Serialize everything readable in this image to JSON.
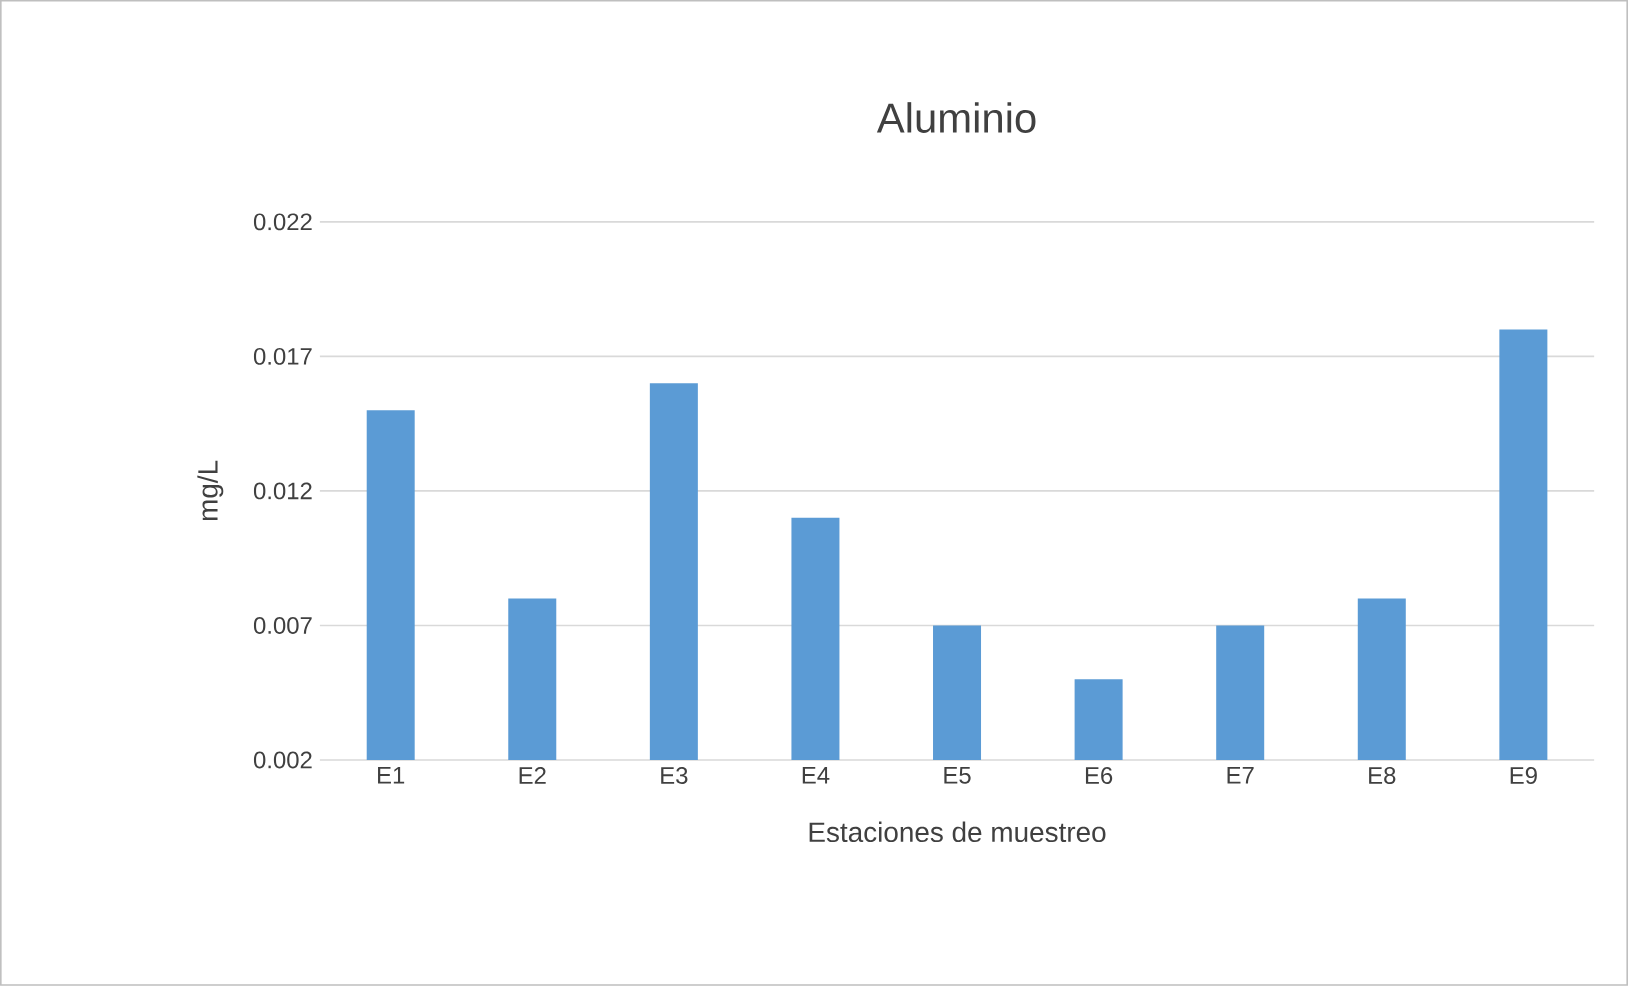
{
  "chart_data": {
    "type": "bar",
    "title": "Aluminio",
    "xlabel": "Estaciones de muestreo",
    "ylabel": "mg/L",
    "categories": [
      "E1",
      "E2",
      "E3",
      "E4",
      "E5",
      "E6",
      "E7",
      "E8",
      "E9"
    ],
    "values": [
      0.015,
      0.008,
      0.016,
      0.011,
      0.007,
      0.005,
      0.007,
      0.008,
      0.018
    ],
    "color": "#5b9bd5",
    "ylim": [
      0.002,
      0.022
    ],
    "yticks": [
      0.002,
      0.007,
      0.012,
      0.017,
      0.022
    ],
    "grid": "y"
  }
}
